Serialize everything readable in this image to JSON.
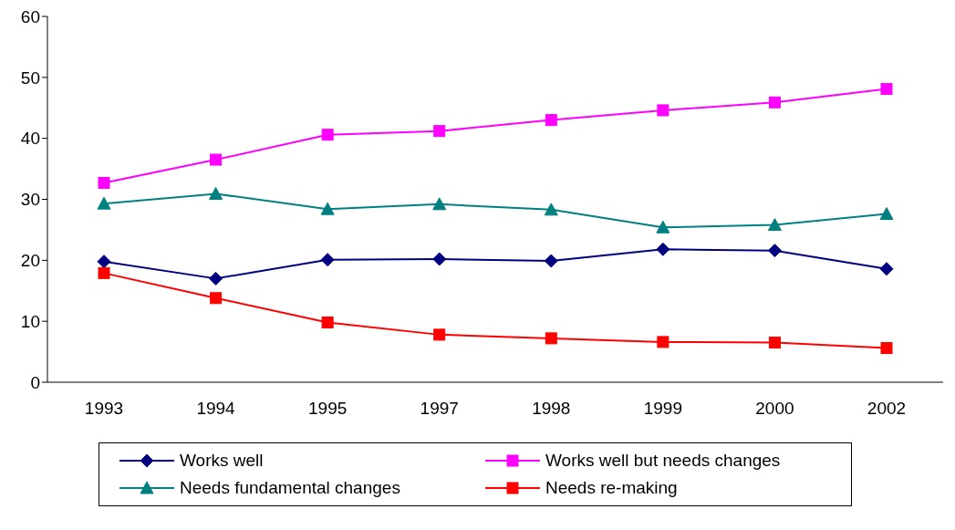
{
  "chart_data": {
    "type": "line",
    "categories": [
      "1993",
      "1994",
      "1995",
      "1997",
      "1998",
      "1999",
      "2000",
      "2002"
    ],
    "series": [
      {
        "name": "Works well",
        "color": "#000080",
        "marker": "diamond",
        "values": [
          19.8,
          17.0,
          20.1,
          20.2,
          19.9,
          21.8,
          21.6,
          18.6
        ]
      },
      {
        "name": "Works well but needs changes",
        "color": "#ff00ff",
        "marker": "square",
        "values": [
          32.7,
          36.5,
          40.6,
          41.2,
          43.0,
          44.6,
          45.9,
          48.1
        ]
      },
      {
        "name": "Needs fundamental changes",
        "color": "#008080",
        "marker": "triangle",
        "values": [
          29.3,
          30.9,
          28.4,
          29.2,
          28.3,
          25.4,
          25.8,
          27.6
        ]
      },
      {
        "name": "Needs re-making",
        "color": "#ff0000",
        "marker": "square",
        "values": [
          17.9,
          13.8,
          9.8,
          7.8,
          7.2,
          6.6,
          6.5,
          5.6
        ]
      }
    ],
    "ylim": [
      0,
      60
    ],
    "yticks": [
      0,
      10,
      20,
      30,
      40,
      50,
      60
    ],
    "grid": false,
    "legend": "bottom",
    "line_style": "solid"
  }
}
